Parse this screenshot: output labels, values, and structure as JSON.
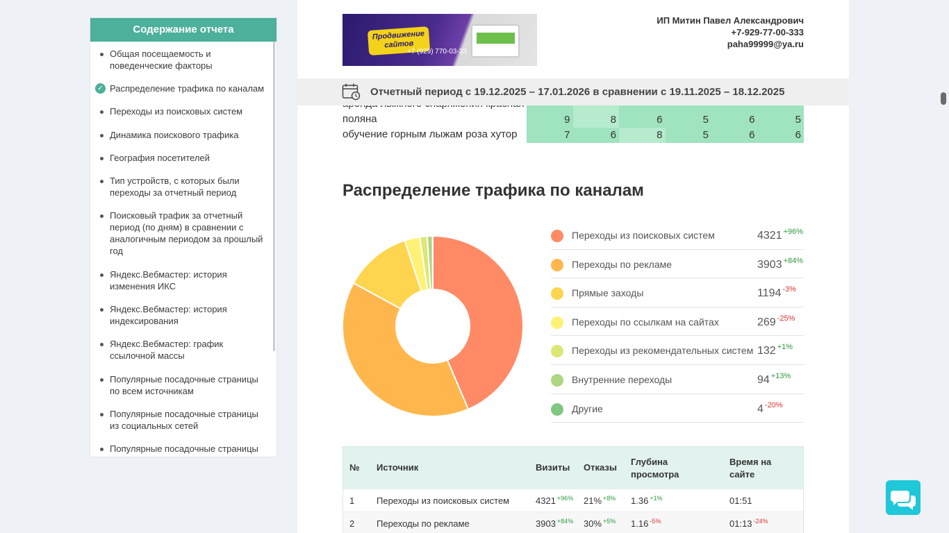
{
  "sidebar": {
    "title": "Содержание отчета",
    "items": [
      "Общая посещаемость и поведенческие факторы",
      "Распределение трафика по каналам",
      "Переходы из поисковых систем",
      "Динамика поискового трафика",
      "География посетителей",
      "Тип устройств, с которых были переходы за отчетный период",
      "Поисковый трафик за отчетный период (по дням) в сравнении с аналогичным периодом за прошлый год",
      "Яндекс.Вебмастер: история изменения ИКС",
      "Яндекс.Вебмастер: история индексирования",
      "Яндекс.Вебмастер: график ссылочной массы",
      "Популярные посадочные страницы по всем источникам",
      "Популярные посадочные страницы из социальных сетей",
      "Популярные посадочные страницы"
    ],
    "active_index": 1
  },
  "banner": {
    "headline": "Продвижение сайтов",
    "phone": "+7 (929) 770-03-33"
  },
  "company": {
    "name": "ИП Митин Павел Александрович",
    "phone": "+7-929-77-00-333",
    "email": "paha99999@ya.ru"
  },
  "period": {
    "text": "Отчетный период с 19.12.2025 – 17.01.2026 в сравнении с 19.11.2025 – 18.12.2025"
  },
  "keywords": [
    {
      "phrase_line1": "аренда лыжного снаряжения красная",
      "phrase_line2": "поляна",
      "values": [
        "9",
        "8",
        "6",
        "5",
        "6",
        "5"
      ]
    },
    {
      "phrase_line1": "обучение горным лыжам роза хутор",
      "values": [
        "7",
        "6",
        "8",
        "5",
        "6",
        "6"
      ]
    }
  ],
  "keyword_cell_colors": [
    [
      "#9fe3bf",
      "#b6ebce",
      "#9fe3bf",
      "#9fe3bf",
      "#9fe3bf",
      "#9fe3bf"
    ],
    [
      "#9fe3bf",
      "#9fe3bf",
      "#b6ebce",
      "#9fe3bf",
      "#9fe3bf",
      "#9fe3bf"
    ]
  ],
  "section_title": "Распределение трафика по каналам",
  "chart_data": {
    "type": "pie",
    "categories": [
      "Переходы из поисковых систем",
      "Переходы по рекламе",
      "Прямые заходы",
      "Переходы по ссылкам на сайтах",
      "Переходы из рекомендательных систем",
      "Внутренние переходы",
      "Другие"
    ],
    "values": [
      4321,
      3903,
      1194,
      269,
      132,
      94,
      4
    ],
    "changes": [
      "+96%",
      "+84%",
      "-3%",
      "-25%",
      "+1%",
      "+13%",
      "-20%"
    ],
    "colors": [
      "#ff8a65",
      "#ffb74d",
      "#ffd54f",
      "#fff176",
      "#dce775",
      "#aed581",
      "#81c784"
    ],
    "donut": true
  },
  "table": {
    "headers": [
      "№",
      "Источник",
      "Визиты",
      "Отказы",
      "Глубина просмотра",
      "Время на сайте"
    ],
    "rows": [
      {
        "n": "1",
        "source": "Переходы из поисковых систем",
        "visits": "4321",
        "visits_chg": "+96%",
        "bounce": "21%",
        "bounce_chg": "+8%",
        "depth": "1.36",
        "depth_chg": "+1%",
        "time": "01:51",
        "time_chg": ""
      },
      {
        "n": "2",
        "source": "Переходы по рекламе",
        "visits": "3903",
        "visits_chg": "+84%",
        "bounce": "30%",
        "bounce_chg": "+5%",
        "depth": "1.16",
        "depth_chg": "-5%",
        "time": "01:13",
        "time_chg": "-24%"
      }
    ]
  }
}
